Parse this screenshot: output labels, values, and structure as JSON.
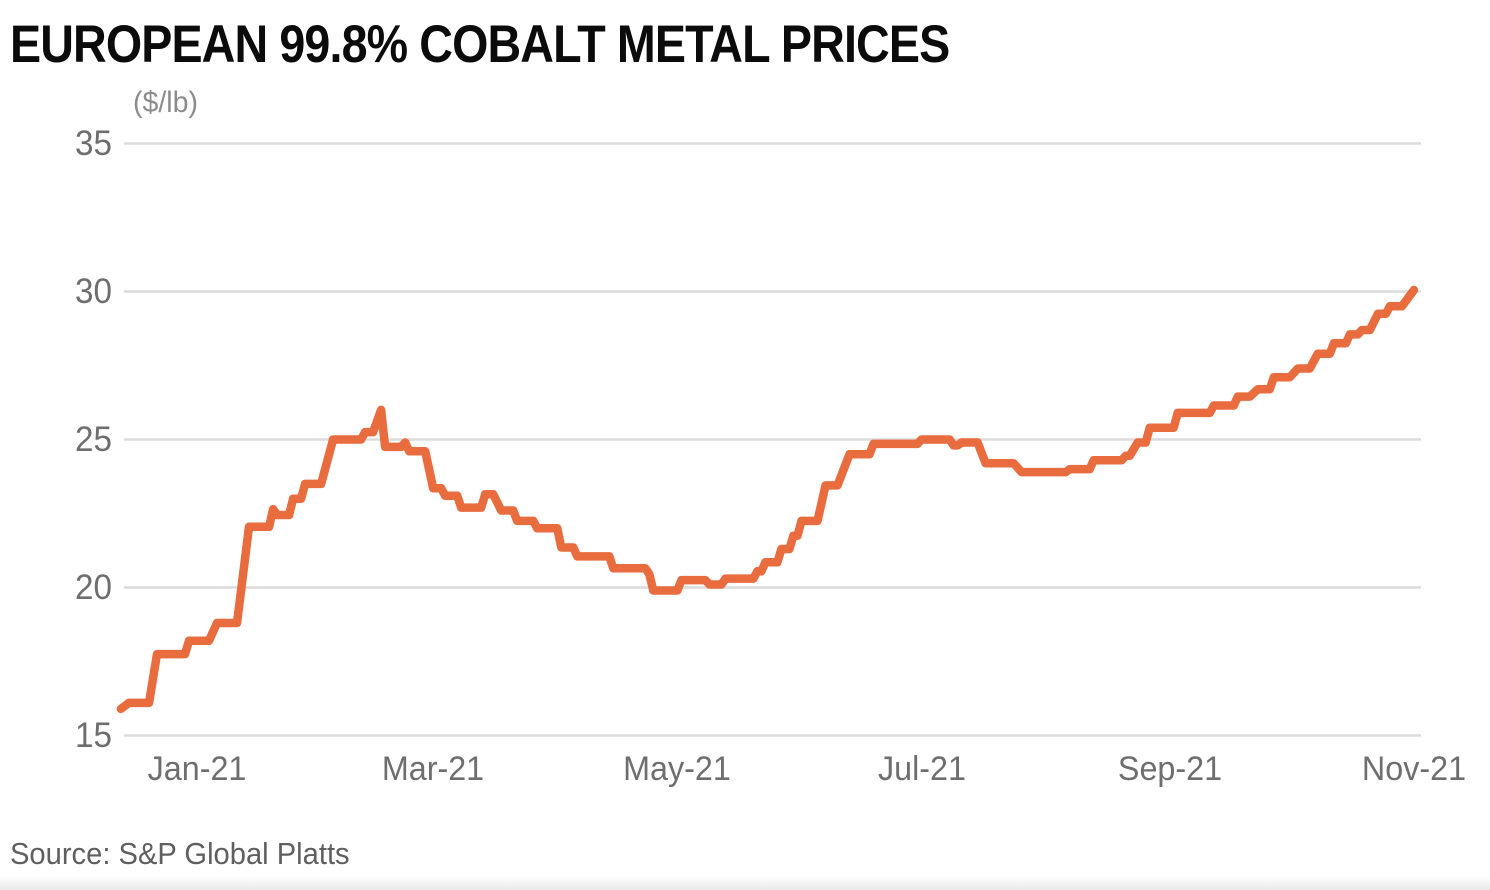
{
  "header": {
    "title": "EUROPEAN 99.8% COBALT METAL PRICES",
    "unit_label": "($/lb)"
  },
  "footer": {
    "source": "Source: S&P Global Platts"
  },
  "colors": {
    "line": "#E96C3F",
    "grid": "#DCDCDC",
    "axis_text": "#6E6E6E",
    "title_text": "#0B0B0B",
    "unit_text": "#8C8C8C",
    "source_text": "#5F5F5F",
    "background": "#FFFFFF"
  },
  "chart_data": {
    "type": "line",
    "title": "EUROPEAN 99.8% COBALT METAL PRICES",
    "ylabel": "($/lb)",
    "xlabel": "",
    "ylim": [
      15,
      35
    ],
    "grid": "horizontal",
    "legend_position": "none",
    "y_ticks": [
      15,
      20,
      25,
      30,
      35
    ],
    "x_ticks": [
      {
        "label": "Jan-21",
        "date": "2021-01-01"
      },
      {
        "label": "Mar-21",
        "date": "2021-03-01"
      },
      {
        "label": "May-21",
        "date": "2021-05-01"
      },
      {
        "label": "Jul-21",
        "date": "2021-07-01"
      },
      {
        "label": "Sep-21",
        "date": "2021-09-01"
      },
      {
        "label": "Nov-21",
        "date": "2021-11-01"
      }
    ],
    "series": [
      {
        "name": "European 99.8% cobalt metal price ($/lb)",
        "color": "#E96C3F",
        "points": [
          {
            "date": "2020-12-13",
            "value": 15.9
          },
          {
            "date": "2020-12-15",
            "value": 16.1
          },
          {
            "date": "2020-12-20",
            "value": 16.1
          },
          {
            "date": "2020-12-22",
            "value": 17.75
          },
          {
            "date": "2020-12-29",
            "value": 17.75
          },
          {
            "date": "2020-12-30",
            "value": 18.2
          },
          {
            "date": "2021-01-04",
            "value": 18.2
          },
          {
            "date": "2021-01-06",
            "value": 18.8
          },
          {
            "date": "2021-01-11",
            "value": 18.8
          },
          {
            "date": "2021-01-14",
            "value": 22.05
          },
          {
            "date": "2021-01-19",
            "value": 22.05
          },
          {
            "date": "2021-01-20",
            "value": 22.65
          },
          {
            "date": "2021-01-21",
            "value": 22.45
          },
          {
            "date": "2021-01-24",
            "value": 22.45
          },
          {
            "date": "2021-01-25",
            "value": 23.0
          },
          {
            "date": "2021-01-27",
            "value": 23.0
          },
          {
            "date": "2021-01-28",
            "value": 23.5
          },
          {
            "date": "2021-02-01",
            "value": 23.5
          },
          {
            "date": "2021-02-04",
            "value": 25.0
          },
          {
            "date": "2021-02-11",
            "value": 25.0
          },
          {
            "date": "2021-02-12",
            "value": 25.25
          },
          {
            "date": "2021-02-14",
            "value": 25.25
          },
          {
            "date": "2021-02-16",
            "value": 26.0
          },
          {
            "date": "2021-02-17",
            "value": 24.75
          },
          {
            "date": "2021-02-21",
            "value": 24.75
          },
          {
            "date": "2021-02-22",
            "value": 24.9
          },
          {
            "date": "2021-02-23",
            "value": 24.6
          },
          {
            "date": "2021-02-27",
            "value": 24.6
          },
          {
            "date": "2021-03-01",
            "value": 23.35
          },
          {
            "date": "2021-03-03",
            "value": 23.35
          },
          {
            "date": "2021-03-04",
            "value": 23.1
          },
          {
            "date": "2021-03-07",
            "value": 23.1
          },
          {
            "date": "2021-03-08",
            "value": 22.7
          },
          {
            "date": "2021-03-13",
            "value": 22.7
          },
          {
            "date": "2021-03-14",
            "value": 23.15
          },
          {
            "date": "2021-03-16",
            "value": 23.15
          },
          {
            "date": "2021-03-18",
            "value": 22.6
          },
          {
            "date": "2021-03-21",
            "value": 22.6
          },
          {
            "date": "2021-03-22",
            "value": 22.25
          },
          {
            "date": "2021-03-26",
            "value": 22.25
          },
          {
            "date": "2021-03-27",
            "value": 22.0
          },
          {
            "date": "2021-04-01",
            "value": 22.0
          },
          {
            "date": "2021-04-02",
            "value": 21.35
          },
          {
            "date": "2021-04-05",
            "value": 21.35
          },
          {
            "date": "2021-04-06",
            "value": 21.05
          },
          {
            "date": "2021-04-14",
            "value": 21.05
          },
          {
            "date": "2021-04-15",
            "value": 20.65
          },
          {
            "date": "2021-04-23",
            "value": 20.65
          },
          {
            "date": "2021-04-24",
            "value": 20.45
          },
          {
            "date": "2021-04-25",
            "value": 19.9
          },
          {
            "date": "2021-05-01",
            "value": 19.9
          },
          {
            "date": "2021-05-02",
            "value": 20.25
          },
          {
            "date": "2021-05-08",
            "value": 20.25
          },
          {
            "date": "2021-05-09",
            "value": 20.1
          },
          {
            "date": "2021-05-12",
            "value": 20.1
          },
          {
            "date": "2021-05-13",
            "value": 20.3
          },
          {
            "date": "2021-05-20",
            "value": 20.3
          },
          {
            "date": "2021-05-21",
            "value": 20.55
          },
          {
            "date": "2021-05-22",
            "value": 20.55
          },
          {
            "date": "2021-05-23",
            "value": 20.85
          },
          {
            "date": "2021-05-26",
            "value": 20.85
          },
          {
            "date": "2021-05-27",
            "value": 21.3
          },
          {
            "date": "2021-05-29",
            "value": 21.3
          },
          {
            "date": "2021-05-30",
            "value": 21.75
          },
          {
            "date": "2021-05-31",
            "value": 21.75
          },
          {
            "date": "2021-06-01",
            "value": 22.25
          },
          {
            "date": "2021-06-05",
            "value": 22.25
          },
          {
            "date": "2021-06-07",
            "value": 23.45
          },
          {
            "date": "2021-06-10",
            "value": 23.45
          },
          {
            "date": "2021-06-13",
            "value": 24.5
          },
          {
            "date": "2021-06-18",
            "value": 24.5
          },
          {
            "date": "2021-06-19",
            "value": 24.85
          },
          {
            "date": "2021-06-30",
            "value": 24.85
          },
          {
            "date": "2021-07-01",
            "value": 25.0
          },
          {
            "date": "2021-07-08",
            "value": 25.0
          },
          {
            "date": "2021-07-09",
            "value": 24.8
          },
          {
            "date": "2021-07-10",
            "value": 24.8
          },
          {
            "date": "2021-07-11",
            "value": 24.9
          },
          {
            "date": "2021-07-15",
            "value": 24.9
          },
          {
            "date": "2021-07-17",
            "value": 24.2
          },
          {
            "date": "2021-07-24",
            "value": 24.2
          },
          {
            "date": "2021-07-26",
            "value": 23.9
          },
          {
            "date": "2021-08-06",
            "value": 23.9
          },
          {
            "date": "2021-08-07",
            "value": 24.0
          },
          {
            "date": "2021-08-12",
            "value": 24.0
          },
          {
            "date": "2021-08-13",
            "value": 24.3
          },
          {
            "date": "2021-08-20",
            "value": 24.3
          },
          {
            "date": "2021-08-21",
            "value": 24.45
          },
          {
            "date": "2021-08-22",
            "value": 24.45
          },
          {
            "date": "2021-08-24",
            "value": 24.9
          },
          {
            "date": "2021-08-26",
            "value": 24.9
          },
          {
            "date": "2021-08-27",
            "value": 25.4
          },
          {
            "date": "2021-09-02",
            "value": 25.4
          },
          {
            "date": "2021-09-03",
            "value": 25.9
          },
          {
            "date": "2021-09-11",
            "value": 25.9
          },
          {
            "date": "2021-09-12",
            "value": 26.15
          },
          {
            "date": "2021-09-17",
            "value": 26.15
          },
          {
            "date": "2021-09-18",
            "value": 26.45
          },
          {
            "date": "2021-09-21",
            "value": 26.45
          },
          {
            "date": "2021-09-23",
            "value": 26.7
          },
          {
            "date": "2021-09-26",
            "value": 26.7
          },
          {
            "date": "2021-09-27",
            "value": 27.1
          },
          {
            "date": "2021-10-01",
            "value": 27.1
          },
          {
            "date": "2021-10-03",
            "value": 27.4
          },
          {
            "date": "2021-10-06",
            "value": 27.4
          },
          {
            "date": "2021-10-08",
            "value": 27.9
          },
          {
            "date": "2021-10-11",
            "value": 27.9
          },
          {
            "date": "2021-10-12",
            "value": 28.25
          },
          {
            "date": "2021-10-15",
            "value": 28.25
          },
          {
            "date": "2021-10-16",
            "value": 28.55
          },
          {
            "date": "2021-10-18",
            "value": 28.55
          },
          {
            "date": "2021-10-19",
            "value": 28.7
          },
          {
            "date": "2021-10-21",
            "value": 28.7
          },
          {
            "date": "2021-10-23",
            "value": 29.25
          },
          {
            "date": "2021-10-25",
            "value": 29.25
          },
          {
            "date": "2021-10-26",
            "value": 29.5
          },
          {
            "date": "2021-10-29",
            "value": 29.5
          },
          {
            "date": "2021-11-01",
            "value": 30.05
          }
        ]
      }
    ]
  }
}
